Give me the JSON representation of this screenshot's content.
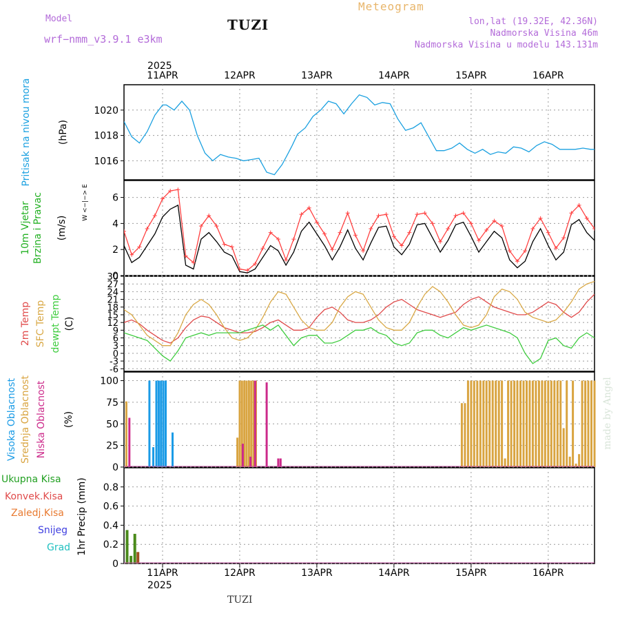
{
  "header": {
    "model_label": "Model",
    "model_name": "wrf−nmm_v3.9.1  e3km",
    "title": "TUZI",
    "app_title": "Meteogram",
    "coords": "lon,lat (19.32E, 42.36N)",
    "elevation": "Nadmorska Visina 46m",
    "model_elevation": "Nadmorska Visina u modelu 143.131m",
    "watermark": "made by Angel",
    "footer_station": "TUZI",
    "year_top": "2025",
    "year_bottom": "2025"
  },
  "time_axis": {
    "days": [
      "11APR",
      "12APR",
      "13APR",
      "14APR",
      "15APR",
      "16APR"
    ],
    "start_day_offset": -0.5,
    "end_day_offset": 5.6
  },
  "chart_data": [
    {
      "type": "line",
      "id": "pressure",
      "title": "Pritisak na nivou mora",
      "ylabel": "(hPa)",
      "ylim": [
        1014.5,
        1022
      ],
      "yticks": [
        1016,
        1018,
        1020
      ],
      "color": "#1aa0e0",
      "series": [
        {
          "name": "Pritisak",
          "x": [
            -0.5,
            -0.4,
            -0.3,
            -0.2,
            -0.1,
            0.0,
            0.05,
            0.15,
            0.25,
            0.35,
            0.45,
            0.55,
            0.65,
            0.75,
            0.85,
            0.95,
            1.05,
            1.15,
            1.25,
            1.35,
            1.45,
            1.55,
            1.62,
            1.68,
            1.75,
            1.85,
            1.95,
            2.05,
            2.15,
            2.25,
            2.35,
            2.45,
            2.55,
            2.65,
            2.75,
            2.85,
            2.95,
            3.05,
            3.15,
            3.25,
            3.35,
            3.45,
            3.55,
            3.65,
            3.75,
            3.85,
            3.95,
            4.05,
            4.15,
            4.25,
            4.35,
            4.45,
            4.55,
            4.65,
            4.75,
            4.85,
            4.95,
            5.05,
            5.15,
            5.25,
            5.35,
            5.45,
            5.55,
            5.6
          ],
          "values": [
            1019.1,
            1017.9,
            1017.4,
            1018.3,
            1019.6,
            1020.4,
            1020.4,
            1020.0,
            1020.7,
            1020.0,
            1018.0,
            1016.6,
            1016.0,
            1016.5,
            1016.3,
            1016.2,
            1016.0,
            1016.1,
            1016.2,
            1015.1,
            1014.9,
            1015.7,
            1016.5,
            1017.2,
            1018.1,
            1018.6,
            1019.5,
            1020.0,
            1020.7,
            1020.5,
            1019.7,
            1020.5,
            1021.2,
            1021.0,
            1020.4,
            1020.6,
            1020.5,
            1019.3,
            1018.4,
            1018.6,
            1019.0,
            1017.9,
            1016.8,
            1016.8,
            1017.0,
            1017.4,
            1016.9,
            1016.6,
            1016.9,
            1016.5,
            1016.7,
            1016.6,
            1017.1,
            1017.0,
            1016.7,
            1017.2,
            1017.5,
            1017.3,
            1016.9,
            1016.9,
            1016.9,
            1017.0,
            1016.9,
            1016.9
          ]
        }
      ]
    },
    {
      "type": "line",
      "id": "wind",
      "title": "10m Vjetar Brzina i Pravac",
      "ylabel": "(m/s)",
      "compass": "W <−|−> E",
      "ylim": [
        0,
        7.3
      ],
      "yticks": [
        0,
        2,
        4,
        6
      ],
      "series": [
        {
          "name": "Brzina",
          "color": "#000000",
          "x": [
            -0.5,
            -0.4,
            -0.3,
            -0.2,
            -0.1,
            0.0,
            0.1,
            0.2,
            0.3,
            0.4,
            0.5,
            0.6,
            0.7,
            0.8,
            0.9,
            1.0,
            1.1,
            1.2,
            1.3,
            1.4,
            1.5,
            1.6,
            1.7,
            1.8,
            1.9,
            2.0,
            2.1,
            2.2,
            2.3,
            2.4,
            2.5,
            2.6,
            2.7,
            2.8,
            2.9,
            3.0,
            3.1,
            3.2,
            3.3,
            3.4,
            3.5,
            3.6,
            3.7,
            3.8,
            3.9,
            4.0,
            4.1,
            4.2,
            4.3,
            4.4,
            4.5,
            4.6,
            4.7,
            4.8,
            4.9,
            5.0,
            5.1,
            5.2,
            5.3,
            5.4,
            5.5,
            5.6
          ],
          "values": [
            2.3,
            1.0,
            1.4,
            2.3,
            3.2,
            4.5,
            5.1,
            5.4,
            0.8,
            0.5,
            2.8,
            3.3,
            2.6,
            1.8,
            1.5,
            0.3,
            0.2,
            0.5,
            1.4,
            2.3,
            1.9,
            0.8,
            1.8,
            3.4,
            4.1,
            3.2,
            2.3,
            1.2,
            2.2,
            3.5,
            2.1,
            1.2,
            2.5,
            3.7,
            3.8,
            2.2,
            1.6,
            2.4,
            3.9,
            4.0,
            2.9,
            1.8,
            2.7,
            3.9,
            4.1,
            3.0,
            1.8,
            2.6,
            3.4,
            2.9,
            1.2,
            0.6,
            1.1,
            2.6,
            3.6,
            2.3,
            1.2,
            1.8,
            3.9,
            4.3,
            3.3,
            2.7
          ]
        },
        {
          "name": "Udari",
          "color": "#ff4040",
          "x": [
            -0.5,
            -0.4,
            -0.3,
            -0.2,
            -0.1,
            0.0,
            0.1,
            0.2,
            0.3,
            0.4,
            0.5,
            0.6,
            0.7,
            0.8,
            0.9,
            1.0,
            1.1,
            1.2,
            1.3,
            1.4,
            1.5,
            1.6,
            1.7,
            1.8,
            1.9,
            2.0,
            2.1,
            2.2,
            2.3,
            2.4,
            2.5,
            2.6,
            2.7,
            2.8,
            2.9,
            3.0,
            3.1,
            3.2,
            3.3,
            3.4,
            3.5,
            3.6,
            3.7,
            3.8,
            3.9,
            4.0,
            4.1,
            4.2,
            4.3,
            4.4,
            4.5,
            4.6,
            4.7,
            4.8,
            4.9,
            5.0,
            5.1,
            5.2,
            5.3,
            5.4,
            5.5,
            5.6
          ],
          "values": [
            3.4,
            1.6,
            2.2,
            3.6,
            4.6,
            5.9,
            6.5,
            6.6,
            1.5,
            1.0,
            3.8,
            4.6,
            3.8,
            2.4,
            2.2,
            0.5,
            0.4,
            0.9,
            2.1,
            3.3,
            2.8,
            1.2,
            2.8,
            4.7,
            5.2,
            4.1,
            3.2,
            2.0,
            3.3,
            4.8,
            3.1,
            1.9,
            3.6,
            4.6,
            4.7,
            3.0,
            2.3,
            3.3,
            4.7,
            4.8,
            4.0,
            2.6,
            3.6,
            4.6,
            4.8,
            4.0,
            2.7,
            3.5,
            4.2,
            3.8,
            1.9,
            1.1,
            1.9,
            3.6,
            4.4,
            3.3,
            2.1,
            2.9,
            4.8,
            5.4,
            4.4,
            3.6
          ]
        }
      ]
    },
    {
      "type": "line",
      "id": "temperature",
      "ylabel": "(C)",
      "series_labels": [
        "2m Temp",
        "SFC Temp",
        "dewpt Temp"
      ],
      "ylim": [
        -7,
        30
      ],
      "yticks": [
        -6,
        -3,
        0,
        3,
        6,
        9,
        12,
        15,
        18,
        21,
        24,
        27,
        30
      ],
      "series": [
        {
          "name": "2m Temp",
          "color": "#e04a4a",
          "x": [
            -0.5,
            -0.4,
            -0.3,
            -0.2,
            -0.1,
            0.0,
            0.1,
            0.2,
            0.3,
            0.4,
            0.5,
            0.6,
            0.7,
            0.8,
            0.9,
            1.0,
            1.1,
            1.2,
            1.3,
            1.4,
            1.5,
            1.6,
            1.7,
            1.8,
            1.9,
            2.0,
            2.1,
            2.2,
            2.3,
            2.4,
            2.5,
            2.6,
            2.7,
            2.8,
            2.9,
            3.0,
            3.1,
            3.2,
            3.3,
            3.4,
            3.5,
            3.6,
            3.7,
            3.8,
            3.9,
            4.0,
            4.1,
            4.2,
            4.3,
            4.4,
            4.5,
            4.6,
            4.7,
            4.8,
            4.9,
            5.0,
            5.1,
            5.2,
            5.3,
            5.4,
            5.5,
            5.6
          ],
          "values": [
            12,
            13,
            11.5,
            9,
            7,
            5,
            4,
            6,
            10,
            13,
            14.5,
            14,
            12,
            10,
            9,
            8,
            8,
            8.5,
            10,
            12,
            13,
            11,
            9,
            9,
            10,
            14,
            17,
            18,
            16,
            13,
            12,
            12,
            13,
            15,
            18,
            20,
            21,
            19,
            17,
            16,
            15,
            14,
            15,
            16,
            19,
            21,
            22,
            20,
            18,
            17,
            16,
            15,
            15,
            16,
            18,
            20,
            19,
            16,
            14,
            16,
            20,
            23
          ]
        },
        {
          "name": "SFC Temp",
          "color": "#d9a845",
          "x": [
            -0.5,
            -0.4,
            -0.3,
            -0.2,
            -0.1,
            0.0,
            0.1,
            0.2,
            0.3,
            0.4,
            0.5,
            0.6,
            0.7,
            0.8,
            0.9,
            1.0,
            1.1,
            1.2,
            1.3,
            1.4,
            1.5,
            1.6,
            1.7,
            1.8,
            1.9,
            2.0,
            2.1,
            2.2,
            2.3,
            2.4,
            2.5,
            2.6,
            2.7,
            2.8,
            2.9,
            3.0,
            3.1,
            3.2,
            3.3,
            3.4,
            3.5,
            3.6,
            3.7,
            3.8,
            3.9,
            4.0,
            4.1,
            4.2,
            4.3,
            4.4,
            4.5,
            4.6,
            4.7,
            4.8,
            4.9,
            5.0,
            5.1,
            5.2,
            5.3,
            5.4,
            5.5,
            5.6
          ],
          "values": [
            17,
            15,
            11,
            7,
            5,
            3,
            3,
            8,
            15,
            19,
            21,
            19,
            15,
            10,
            6,
            5,
            6,
            9,
            14,
            20,
            24,
            23,
            18,
            13,
            10,
            9,
            9,
            12,
            18,
            22,
            24,
            23,
            18,
            13,
            10,
            9,
            9,
            12,
            18,
            23,
            26,
            24,
            20,
            15,
            11,
            10,
            11,
            15,
            22,
            25,
            24,
            21,
            16,
            14,
            13,
            12,
            13,
            16,
            20,
            25,
            27,
            28
          ]
        },
        {
          "name": "dewpt Temp",
          "color": "#3fcc3f",
          "x": [
            -0.5,
            -0.4,
            -0.3,
            -0.2,
            -0.1,
            0.0,
            0.1,
            0.2,
            0.3,
            0.4,
            0.5,
            0.6,
            0.7,
            0.8,
            0.9,
            1.0,
            1.1,
            1.2,
            1.3,
            1.4,
            1.5,
            1.6,
            1.7,
            1.8,
            1.9,
            2.0,
            2.1,
            2.2,
            2.3,
            2.4,
            2.5,
            2.6,
            2.7,
            2.8,
            2.9,
            3.0,
            3.1,
            3.2,
            3.3,
            3.4,
            3.5,
            3.6,
            3.7,
            3.8,
            3.9,
            4.0,
            4.1,
            4.2,
            4.3,
            4.4,
            4.5,
            4.6,
            4.7,
            4.8,
            4.9,
            5.0,
            5.1,
            5.2,
            5.3,
            5.4,
            5.5,
            5.6
          ],
          "values": [
            8,
            7,
            6,
            5,
            2,
            -1,
            -3,
            1,
            6,
            7,
            8,
            7,
            8,
            8,
            8,
            8,
            9,
            10,
            11,
            9,
            11,
            7,
            3,
            6,
            7,
            7,
            4,
            4,
            5,
            7,
            9,
            9,
            10,
            8,
            7,
            4,
            3,
            4,
            8,
            9,
            9,
            7,
            6,
            8,
            10,
            9,
            10,
            11,
            10,
            9,
            8,
            6,
            0,
            -4,
            -2,
            5,
            6,
            3,
            2,
            6,
            8,
            6
          ]
        }
      ]
    },
    {
      "type": "bar",
      "id": "cloud",
      "ylabel": "(%)",
      "series_labels": [
        "Visoka Oblacnost",
        "Srednja Oblacnost",
        "Niska Oblacnost"
      ],
      "ylim": [
        0,
        110
      ],
      "yticks": [
        0,
        25,
        50,
        75,
        100
      ],
      "series": [
        {
          "name": "Visoka Oblacnost",
          "color": "#1a9be6",
          "x": [
            -0.17,
            -0.12,
            -0.08,
            -0.05,
            -0.02,
            0.01,
            0.04,
            0.13
          ],
          "values": [
            100,
            23,
            100,
            100,
            100,
            100,
            100,
            40
          ]
        },
        {
          "name": "Srednja Oblacnost",
          "color": "#d9a440",
          "x": [
            -0.47,
            0.97,
            1.0,
            1.03,
            1.06,
            1.09,
            1.12,
            1.15,
            1.18,
            1.21,
            3.88,
            3.92,
            3.96,
            4.0,
            4.04,
            4.08,
            4.12,
            4.16,
            4.2,
            4.24,
            4.28,
            4.32,
            4.36,
            4.4,
            4.44,
            4.48,
            4.52,
            4.56,
            4.6,
            4.64,
            4.68,
            4.72,
            4.76,
            4.8,
            4.84,
            4.88,
            4.92,
            4.96,
            5.0,
            5.04,
            5.08,
            5.12,
            5.16,
            5.2,
            5.24,
            5.28,
            5.32,
            5.36,
            5.4,
            5.44,
            5.48,
            5.52,
            5.56,
            5.6
          ],
          "values": [
            76,
            34,
            100,
            100,
            100,
            100,
            100,
            100,
            100,
            100,
            74,
            74,
            100,
            100,
            100,
            100,
            100,
            100,
            100,
            100,
            100,
            100,
            100,
            100,
            10,
            100,
            100,
            100,
            100,
            100,
            100,
            100,
            100,
            100,
            100,
            100,
            100,
            100,
            100,
            100,
            100,
            100,
            100,
            45,
            100,
            12,
            100,
            4,
            15,
            100,
            100,
            100,
            100,
            100
          ]
        },
        {
          "name": "Niska Oblacnost",
          "color": "#cc2a8a",
          "x": [
            -0.43,
            1.04,
            1.14,
            1.2,
            1.35,
            1.5,
            1.53
          ],
          "values": [
            57,
            27,
            12,
            100,
            98,
            10,
            10
          ]
        }
      ]
    },
    {
      "type": "bar",
      "id": "precip",
      "ylabel": "1hr Precip (mm)",
      "series_labels": [
        "Ukupna Kisa",
        "Konvek.Kisa",
        "Zaledj.Kisa",
        "Snijeg",
        "Grad"
      ],
      "ylim": [
        0,
        1.0
      ],
      "yticks": [
        0,
        0.2,
        0.4,
        0.6,
        0.8
      ],
      "series": [
        {
          "name": "Ukupna Kisa",
          "color": "#4a8a1a",
          "x": [
            -0.46,
            -0.41,
            -0.36
          ],
          "values": [
            0.35,
            0.08,
            0.31
          ]
        },
        {
          "name": "Konvek.Kisa",
          "color": "#a05020",
          "x": [
            -0.32
          ],
          "values": [
            0.12
          ]
        }
      ]
    }
  ]
}
